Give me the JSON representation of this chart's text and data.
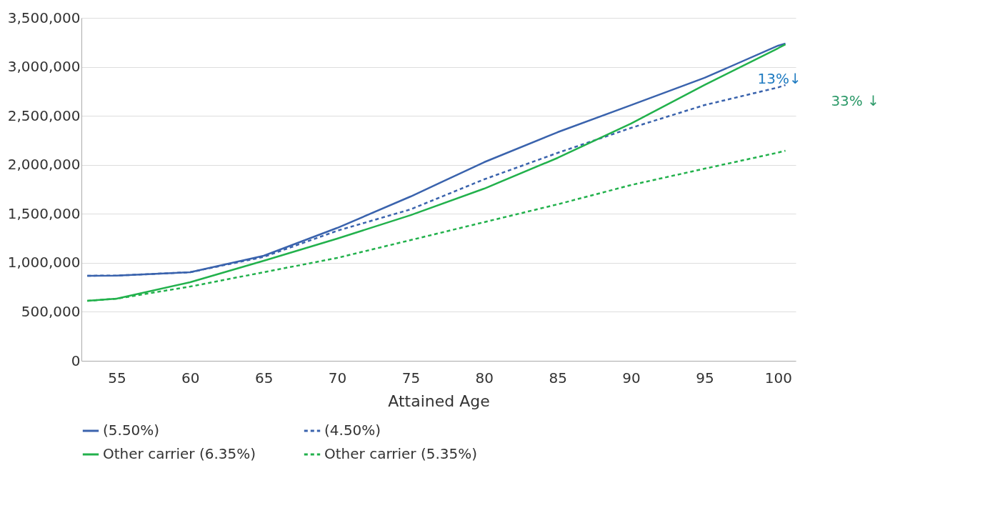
{
  "chart_data": {
    "type": "line",
    "xlabel": "Attained Age",
    "x": [
      53,
      55,
      60,
      65,
      70,
      75,
      80,
      85,
      90,
      95,
      100,
      100.5
    ],
    "series": [
      {
        "name": "(5.50%)",
        "color": "#3a63ad",
        "line_style": "solid",
        "values": [
          868000,
          870000,
          904000,
          1072000,
          1356000,
          1677000,
          2027000,
          2333000,
          2610000,
          2888000,
          3216000,
          3238000
        ]
      },
      {
        "name": "(4.50%)",
        "color": "#3a63ad",
        "line_style": "dashed",
        "values": [
          868000,
          870000,
          904000,
          1060000,
          1327000,
          1546000,
          1852000,
          2122000,
          2377000,
          2610000,
          2790000,
          2815000
        ]
      },
      {
        "name": "Other carrier (6.35%)",
        "color": "#22b14c",
        "line_style": "solid",
        "values": [
          612000,
          634000,
          802000,
          1021000,
          1247000,
          1487000,
          1757000,
          2071000,
          2421000,
          2815000,
          3190000,
          3230000
        ]
      },
      {
        "name": "Other carrier (5.35%)",
        "color": "#22b14c",
        "line_style": "dashed",
        "values": [
          612000,
          634000,
          758000,
          904000,
          1050000,
          1232000,
          1415000,
          1597000,
          1794000,
          1961000,
          2125000,
          2144000
        ]
      }
    ],
    "xlim": [
      52.6,
      101.2
    ],
    "xticks": [
      55,
      60,
      65,
      70,
      75,
      80,
      85,
      90,
      95,
      100
    ],
    "ylim": [
      0,
      3500000
    ],
    "yticks": [
      {
        "value": 0,
        "label": "0"
      },
      {
        "value": 500000,
        "label": "500,000"
      },
      {
        "value": 1000000,
        "label": "1,000,000"
      },
      {
        "value": 1500000,
        "label": "1,500,000"
      },
      {
        "value": 2000000,
        "label": "2,000,000"
      },
      {
        "value": 2500000,
        "label": "2,500,000"
      },
      {
        "value": 3000000,
        "label": "3,000,000"
      },
      {
        "value": 3500000,
        "label": "3,500,000"
      }
    ],
    "annotations": [
      "13%↓",
      "33% ↓"
    ],
    "grid": "y",
    "legend": "bottom"
  }
}
